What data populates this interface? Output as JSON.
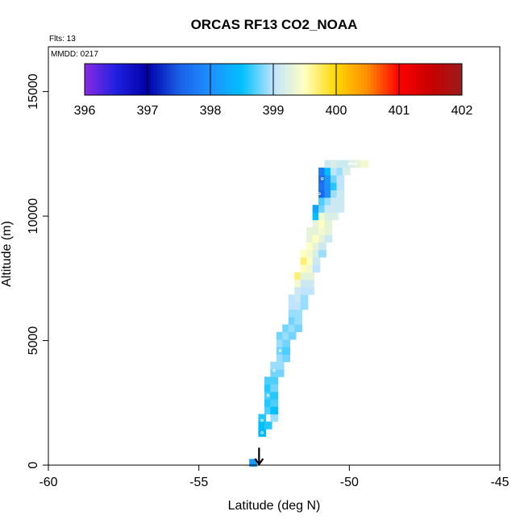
{
  "notes": {
    "flights": "Flts: 13",
    "mmdd": "MMDD: 0217"
  },
  "chart_data": {
    "type": "heatmap",
    "title": "ORCAS RF13 CO2_NOAA",
    "xlabel": "Latitude (deg N)",
    "ylabel": "Altitude (m)",
    "xlim": [
      -60,
      -45
    ],
    "ylim": [
      0,
      16800
    ],
    "x_ticks": [
      -60,
      -55,
      -50,
      -45
    ],
    "y_ticks": [
      0,
      5000,
      10000,
      15000
    ],
    "x_tick_labels": [
      "-60",
      "-55",
      "-50",
      "-45"
    ],
    "y_tick_labels": [
      "0",
      "5000",
      "10000",
      "15000"
    ],
    "cell_size": {
      "lat": 0.25,
      "alt": 300
    },
    "colorbar": {
      "min": 396,
      "max": 402,
      "tick_values": [
        396,
        397,
        398,
        399,
        400,
        401,
        402
      ],
      "tick_labels": [
        "396",
        "397",
        "398",
        "399",
        "400",
        "401",
        "402"
      ],
      "stops": [
        {
          "v": 396.0,
          "c": "#8a2be2"
        },
        {
          "v": 396.5,
          "c": "#2020e0"
        },
        {
          "v": 397.0,
          "c": "#0000a8"
        },
        {
          "v": 397.5,
          "c": "#1a5fe8"
        },
        {
          "v": 398.0,
          "c": "#1e90ff"
        },
        {
          "v": 398.5,
          "c": "#00bfff"
        },
        {
          "v": 399.0,
          "c": "#bfe4ff"
        },
        {
          "v": 399.5,
          "c": "#ffffc0"
        },
        {
          "v": 400.0,
          "c": "#ffd700"
        },
        {
          "v": 400.5,
          "c": "#ff8c00"
        },
        {
          "v": 401.0,
          "c": "#ff0000"
        },
        {
          "v": 401.5,
          "c": "#c80000"
        },
        {
          "v": 402.0,
          "c": "#9b1c1c"
        }
      ]
    },
    "series": [
      {
        "cells": [
          [
            -53.2,
            100,
            398.1
          ],
          [
            -52.9,
            1300,
            398.4
          ],
          [
            -52.9,
            1600,
            398.5
          ],
          [
            -52.9,
            1900,
            398.6
          ],
          [
            -52.7,
            1600,
            398.6
          ],
          [
            -52.7,
            2200,
            398.7
          ],
          [
            -52.7,
            2500,
            398.6
          ],
          [
            -52.7,
            2800,
            398.7
          ],
          [
            -52.7,
            3100,
            398.6
          ],
          [
            -52.7,
            3400,
            398.7
          ],
          [
            -52.5,
            1900,
            398.9
          ],
          [
            -52.5,
            2200,
            398.5
          ],
          [
            -52.5,
            2500,
            398.7
          ],
          [
            -52.5,
            2800,
            398.6
          ],
          [
            -52.5,
            3100,
            398.8
          ],
          [
            -52.5,
            3400,
            398.7
          ],
          [
            -52.5,
            3700,
            398.8
          ],
          [
            -52.5,
            4000,
            398.9
          ],
          [
            -52.3,
            3700,
            398.8
          ],
          [
            -52.3,
            4000,
            398.9
          ],
          [
            -52.3,
            4300,
            398.9
          ],
          [
            -52.3,
            4600,
            398.8
          ],
          [
            -52.3,
            4900,
            398.9
          ],
          [
            -52.3,
            5200,
            398.8
          ],
          [
            -52.1,
            4300,
            398.8
          ],
          [
            -52.1,
            4600,
            398.7
          ],
          [
            -52.1,
            4900,
            398.8
          ],
          [
            -52.1,
            5200,
            398.9
          ],
          [
            -52.1,
            5500,
            398.8
          ],
          [
            -51.9,
            5200,
            398.8
          ],
          [
            -51.9,
            5500,
            398.9
          ],
          [
            -51.9,
            5800,
            398.8
          ],
          [
            -51.9,
            6100,
            398.9
          ],
          [
            -51.9,
            6400,
            399.0
          ],
          [
            -51.9,
            6700,
            399.0
          ],
          [
            -51.7,
            5500,
            398.8
          ],
          [
            -51.7,
            5800,
            398.9
          ],
          [
            -51.7,
            6100,
            398.9
          ],
          [
            -51.7,
            6400,
            399.0
          ],
          [
            -51.7,
            6700,
            399.1
          ],
          [
            -51.7,
            7000,
            399.1
          ],
          [
            -51.7,
            7300,
            399.4
          ],
          [
            -51.7,
            7600,
            399.7
          ],
          [
            -51.5,
            6400,
            398.9
          ],
          [
            -51.5,
            6700,
            398.9
          ],
          [
            -51.5,
            7000,
            399.0
          ],
          [
            -51.5,
            7300,
            399.1
          ],
          [
            -51.5,
            7600,
            399.3
          ],
          [
            -51.5,
            7900,
            399.5
          ],
          [
            -51.5,
            8200,
            399.7
          ],
          [
            -51.5,
            8500,
            399.5
          ],
          [
            -51.3,
            7000,
            399.0
          ],
          [
            -51.3,
            7300,
            399.1
          ],
          [
            -51.3,
            7600,
            399.3
          ],
          [
            -51.3,
            7900,
            399.4
          ],
          [
            -51.3,
            8200,
            399.5
          ],
          [
            -51.3,
            8500,
            399.4
          ],
          [
            -51.3,
            8800,
            399.5
          ],
          [
            -51.3,
            9100,
            399.3
          ],
          [
            -51.3,
            9400,
            399.3
          ],
          [
            -51.1,
            7900,
            399.0
          ],
          [
            -51.1,
            8200,
            399.1
          ],
          [
            -51.1,
            8500,
            399.2
          ],
          [
            -51.1,
            8800,
            399.3
          ],
          [
            -51.1,
            9100,
            399.5
          ],
          [
            -51.1,
            9400,
            399.3
          ],
          [
            -51.1,
            9700,
            399.3
          ],
          [
            -51.1,
            10000,
            398.5
          ],
          [
            -51.1,
            10300,
            398.2
          ],
          [
            -50.9,
            8500,
            398.9
          ],
          [
            -50.9,
            8800,
            399.1
          ],
          [
            -50.9,
            9100,
            399.3
          ],
          [
            -50.9,
            9400,
            399.4
          ],
          [
            -50.9,
            9700,
            399.5
          ],
          [
            -50.9,
            10000,
            399.4
          ],
          [
            -50.9,
            10300,
            398.8
          ],
          [
            -50.9,
            10600,
            398.7
          ],
          [
            -50.9,
            10900,
            397.6
          ],
          [
            -50.9,
            11200,
            397.7
          ],
          [
            -50.9,
            11500,
            397.6
          ],
          [
            -50.9,
            11800,
            397.8
          ],
          [
            -50.7,
            9100,
            399.1
          ],
          [
            -50.7,
            9400,
            399.3
          ],
          [
            -50.7,
            9700,
            399.3
          ],
          [
            -50.7,
            10000,
            399.2
          ],
          [
            -50.7,
            10300,
            399.1
          ],
          [
            -50.7,
            10600,
            398.9
          ],
          [
            -50.7,
            10900,
            398.0
          ],
          [
            -50.7,
            11200,
            398.0
          ],
          [
            -50.7,
            11500,
            398.1
          ],
          [
            -50.7,
            11800,
            398.5
          ],
          [
            -50.7,
            12100,
            399.1
          ],
          [
            -50.5,
            10000,
            399.2
          ],
          [
            -50.5,
            10300,
            399.1
          ],
          [
            -50.5,
            10600,
            399.1
          ],
          [
            -50.5,
            10900,
            398.9
          ],
          [
            -50.5,
            11200,
            398.6
          ],
          [
            -50.5,
            11500,
            398.8
          ],
          [
            -50.5,
            11800,
            399.0
          ],
          [
            -50.5,
            12100,
            399.2
          ],
          [
            -50.3,
            10300,
            399.1
          ],
          [
            -50.3,
            10600,
            399.1
          ],
          [
            -50.3,
            10900,
            399.1
          ],
          [
            -50.3,
            11200,
            399.0
          ],
          [
            -50.3,
            11500,
            399.0
          ],
          [
            -50.3,
            11800,
            398.9
          ],
          [
            -50.3,
            12100,
            399.1
          ],
          [
            -50.1,
            11800,
            399.2
          ],
          [
            -50.1,
            12100,
            399.1
          ],
          [
            -49.9,
            12100,
            399.2
          ],
          [
            -49.7,
            12100,
            399.3
          ],
          [
            -49.5,
            12100,
            399.4
          ]
        ]
      }
    ],
    "track_points": [
      [
        -53.1,
        500
      ],
      [
        -52.9,
        1300
      ],
      [
        -52.9,
        1800
      ],
      [
        -52.7,
        1900
      ],
      [
        -52.7,
        2800
      ],
      [
        -52.5,
        3800
      ],
      [
        -52.3,
        4600
      ],
      [
        -51.0,
        10900
      ],
      [
        -50.9,
        11500
      ],
      [
        -50.0,
        12100
      ],
      [
        -49.9,
        12100
      ],
      [
        -49.8,
        12100
      ]
    ],
    "airport_marker": {
      "lat": -53.0,
      "alt_top": 700,
      "alt_bottom": 0
    }
  }
}
